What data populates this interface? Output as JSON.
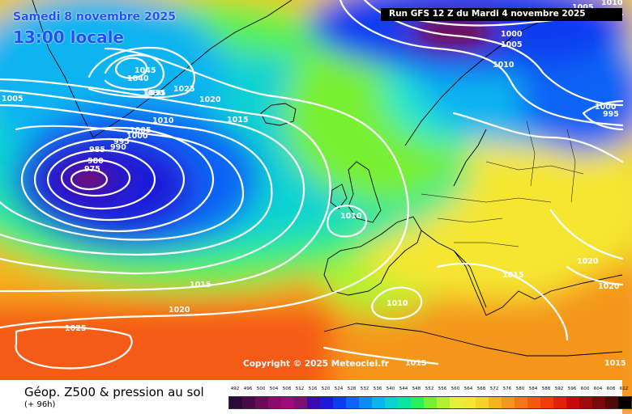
{
  "header": {
    "date": "Samedi 8 novembre 2025",
    "local_time": "13:00 locale",
    "run": "Run GFS 12 Z du Mardi 4 novembre 2025"
  },
  "copyright": "Copyright © 2025 Meteociel.fr",
  "footer": {
    "caption": "Géop. Z500 & pression au sol",
    "offset": "(+ 96h)"
  },
  "legend": {
    "values": [
      "492",
      "496",
      "500",
      "504",
      "508",
      "512",
      "516",
      "520",
      "524",
      "528",
      "532",
      "536",
      "540",
      "544",
      "548",
      "552",
      "556",
      "560",
      "564",
      "568",
      "572",
      "576",
      "580",
      "584",
      "588",
      "592",
      "596",
      "600",
      "604",
      "608",
      "612"
    ],
    "colors": [
      "#2a0a3a",
      "#4a0a4a",
      "#6e0a5a",
      "#8c0a6a",
      "#a00a7a",
      "#7a1070",
      "#3a0ab0",
      "#1a1ad8",
      "#0a3cf0",
      "#0a64f5",
      "#0a8cf5",
      "#0ab4f0",
      "#0ad2d2",
      "#0ae6a0",
      "#28f05a",
      "#78f032",
      "#b4f032",
      "#e6f03c",
      "#f5e632",
      "#f5d228",
      "#f5b41e",
      "#f5961e",
      "#f57814",
      "#f55a0a",
      "#f03c0a",
      "#e61e0a",
      "#c80a0a",
      "#a00a0a",
      "#780a0a",
      "#500a0a",
      "#000000"
    ]
  },
  "isobars": [
    "1005",
    "1000",
    "1005",
    "1010",
    "1045",
    "1040",
    "1035",
    "1030",
    "1025",
    "1020",
    "1015",
    "1010",
    "1005",
    "1000",
    "995",
    "990",
    "985",
    "980",
    "975",
    "1010",
    "1015",
    "1020",
    "1025",
    "1015",
    "1010",
    "1005",
    "995",
    "1000",
    "1010",
    "1020",
    "1020",
    "1015",
    "1015"
  ],
  "colors": {
    "header_text": "#1e50ff",
    "run_box": "#000000",
    "isobar": "#ffffff"
  }
}
